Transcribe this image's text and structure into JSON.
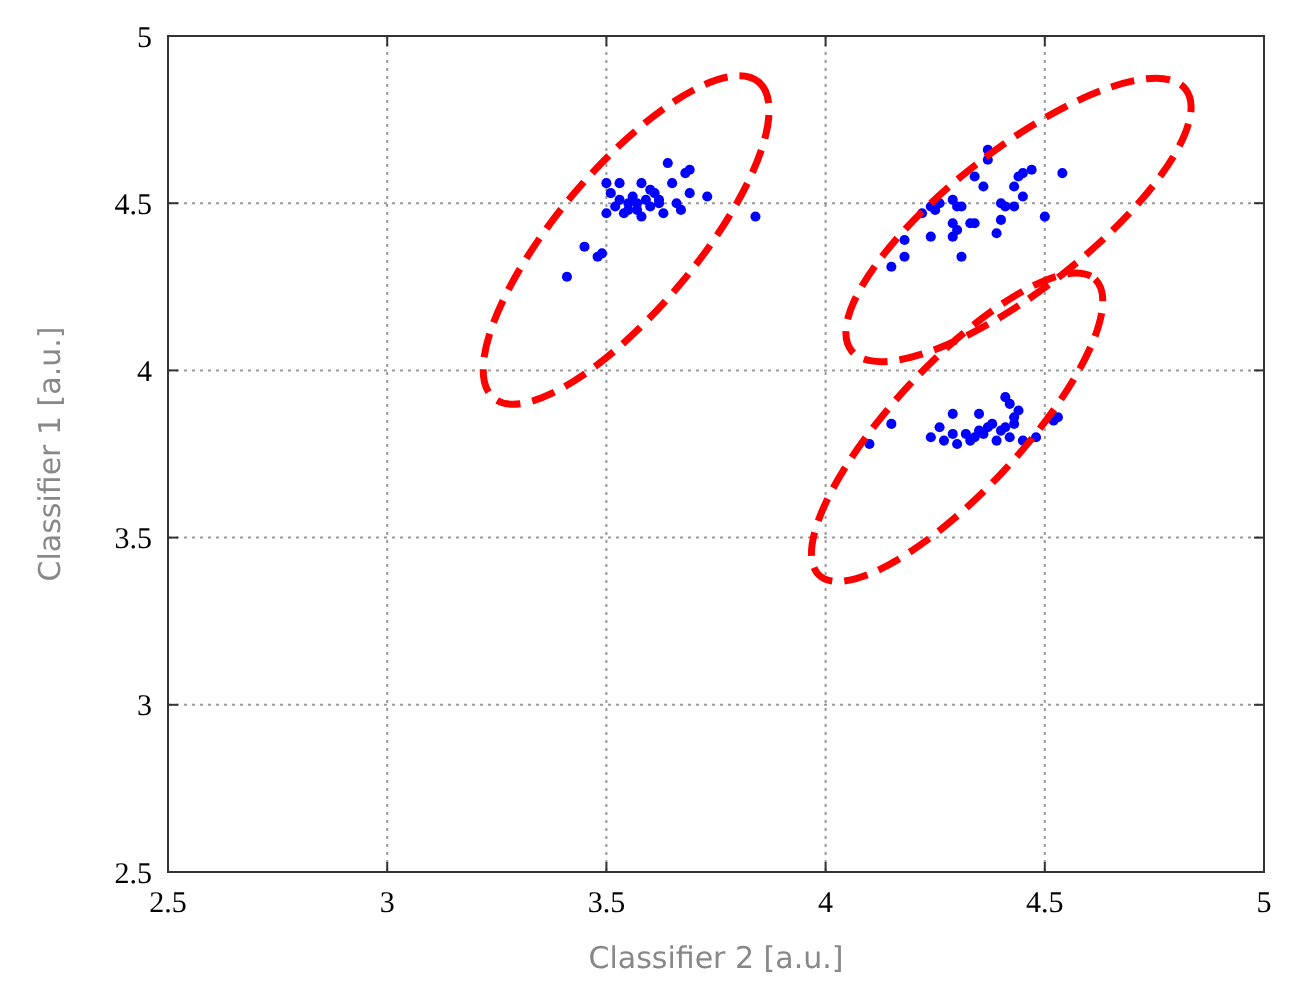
{
  "chart_data": {
    "type": "scatter",
    "xlabel": "Classifier 2 [a.u.]",
    "ylabel": "Classifier 1 [a.u.]",
    "xlim": [
      2.5,
      5
    ],
    "ylim": [
      2.5,
      5
    ],
    "xticks": [
      2.5,
      3,
      3.5,
      4,
      4.5,
      5
    ],
    "yticks": [
      2.5,
      3,
      3.5,
      4,
      4.5,
      5
    ],
    "grid": true,
    "marker": "circle",
    "series": [
      {
        "color": "#0000ff",
        "x": [
          3.84,
          3.41,
          3.45,
          3.48,
          3.49,
          3.64,
          3.69,
          3.68,
          3.5,
          3.53,
          3.58,
          3.65,
          3.73,
          3.69,
          3.51,
          3.67,
          3.52,
          3.55,
          3.57,
          3.59,
          3.6,
          3.62,
          3.54,
          3.56,
          3.61,
          3.63,
          3.58,
          3.53,
          3.6,
          3.66,
          3.55,
          3.5,
          3.57,
          3.62,
          4.37,
          4.37,
          4.54,
          4.47,
          4.45,
          4.44,
          4.34,
          4.36,
          4.43,
          4.29,
          4.24,
          4.22,
          4.25,
          4.26,
          4.31,
          4.3,
          4.4,
          4.41,
          4.43,
          4.45,
          4.5,
          4.29,
          4.3,
          4.29,
          4.33,
          4.34,
          4.4,
          4.39,
          4.24,
          4.18,
          4.18,
          4.15,
          4.31,
          4.1,
          4.15,
          4.53,
          4.52,
          4.48,
          4.41,
          4.42,
          4.44,
          4.43,
          4.29,
          4.35,
          4.26,
          4.24,
          4.27,
          4.3,
          4.33,
          4.36,
          4.39,
          4.42,
          4.45,
          4.35,
          4.38,
          4.4,
          4.32,
          4.29,
          4.43,
          4.37,
          4.41,
          4.34
        ],
        "values": [
          4.46,
          4.28,
          4.37,
          4.34,
          4.35,
          4.62,
          4.6,
          4.59,
          4.56,
          4.56,
          4.56,
          4.56,
          4.52,
          4.53,
          4.53,
          4.48,
          4.49,
          4.5,
          4.48,
          4.51,
          4.49,
          4.5,
          4.47,
          4.52,
          4.53,
          4.47,
          4.46,
          4.51,
          4.54,
          4.5,
          4.48,
          4.47,
          4.5,
          4.51,
          4.66,
          4.63,
          4.59,
          4.6,
          4.59,
          4.58,
          4.58,
          4.55,
          4.55,
          4.51,
          4.49,
          4.47,
          4.48,
          4.5,
          4.49,
          4.49,
          4.5,
          4.49,
          4.49,
          4.52,
          4.46,
          4.44,
          4.42,
          4.4,
          4.44,
          4.44,
          4.45,
          4.41,
          4.4,
          4.39,
          4.34,
          4.31,
          4.34,
          3.78,
          3.84,
          3.86,
          3.85,
          3.8,
          3.92,
          3.9,
          3.88,
          3.86,
          3.87,
          3.87,
          3.83,
          3.8,
          3.79,
          3.78,
          3.79,
          3.81,
          3.79,
          3.8,
          3.79,
          3.82,
          3.84,
          3.82,
          3.81,
          3.81,
          3.84,
          3.83,
          3.83,
          3.8
        ]
      }
    ]
  }
}
